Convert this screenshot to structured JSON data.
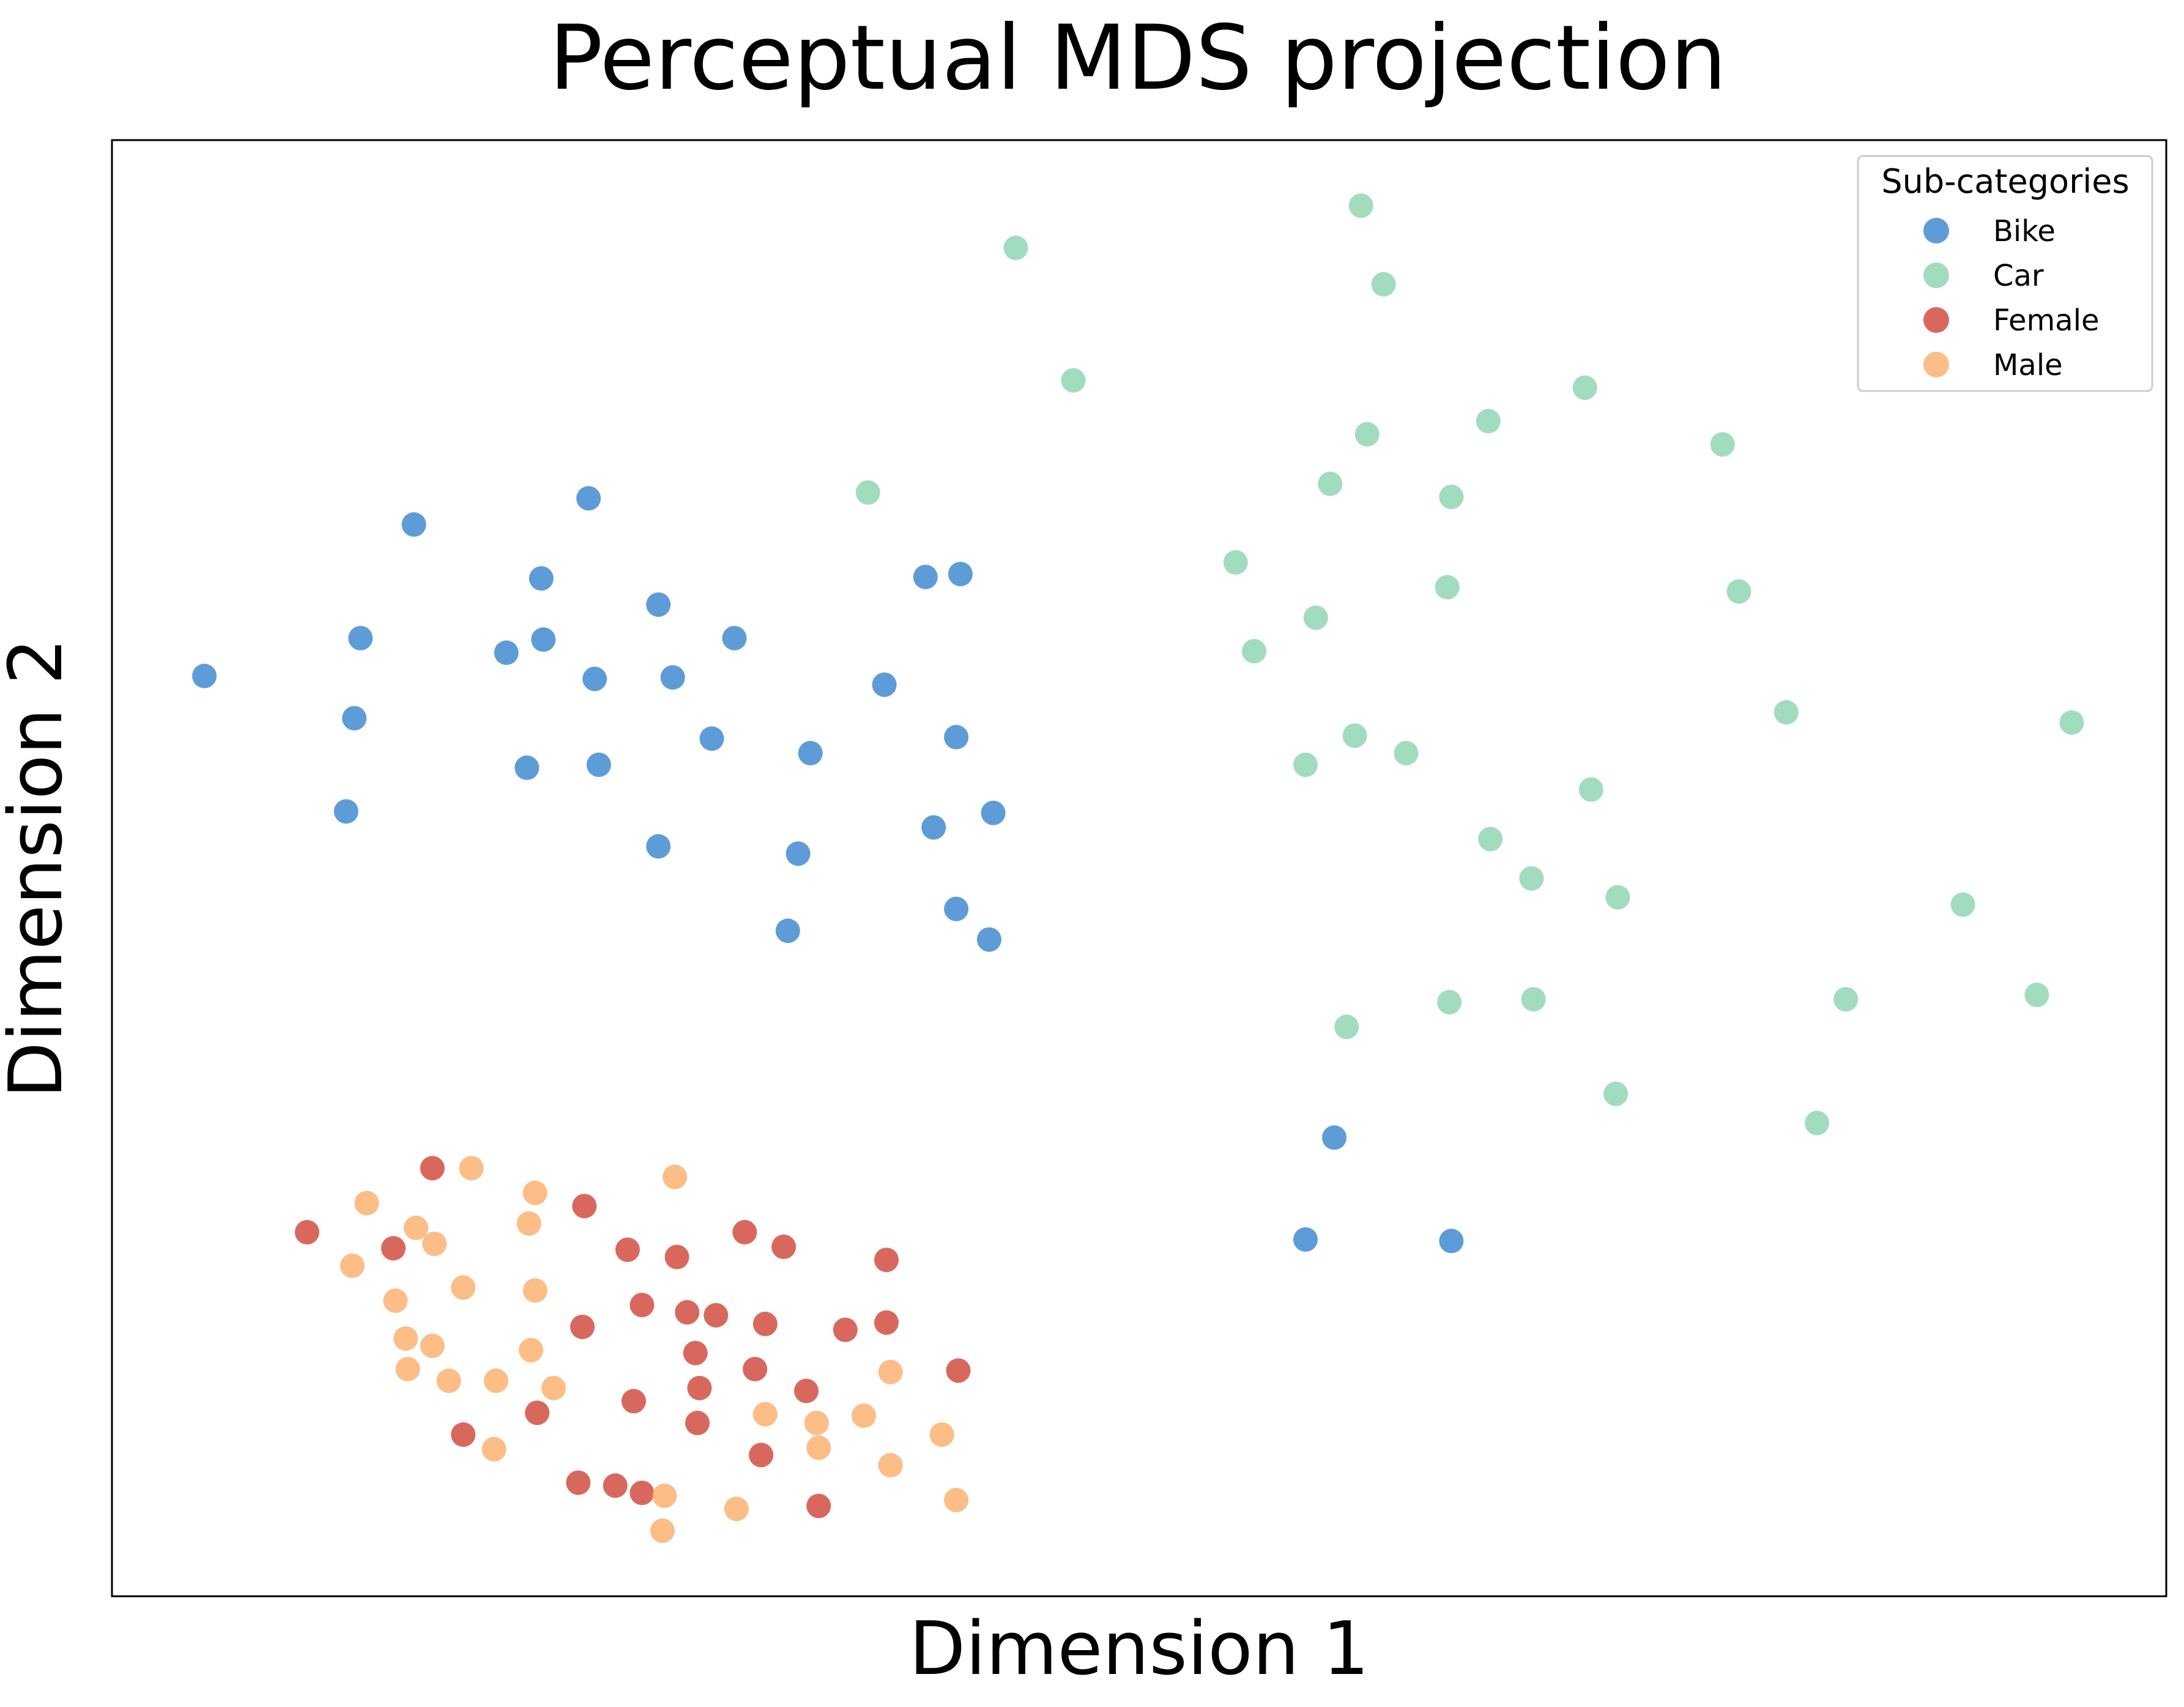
{
  "chart_data": {
    "type": "scatter",
    "title": "Perceptual MDS projection",
    "xlabel": "Dimension 1",
    "ylabel": "Dimension 2",
    "xlim": [
      0,
      100
    ],
    "ylim": [
      0,
      100
    ],
    "x_ticks": "none",
    "y_ticks": "none",
    "grid": false,
    "legend": {
      "title": "Sub-categories",
      "position": "top-right"
    },
    "series": [
      {
        "name": "Bike",
        "color": "#3a86cf",
        "points": [
          [
            4.5,
            63.2
          ],
          [
            14.7,
            73.6
          ],
          [
            12.1,
            65.8
          ],
          [
            11.8,
            60.3
          ],
          [
            11.4,
            53.9
          ],
          [
            23.2,
            75.4
          ],
          [
            20.9,
            69.9
          ],
          [
            19.2,
            64.8
          ],
          [
            21.0,
            65.7
          ],
          [
            26.6,
            68.1
          ],
          [
            20.2,
            56.9
          ],
          [
            23.5,
            63.0
          ],
          [
            27.3,
            63.1
          ],
          [
            30.3,
            65.8
          ],
          [
            29.2,
            58.9
          ],
          [
            23.7,
            57.1
          ],
          [
            34.0,
            57.9
          ],
          [
            26.6,
            51.5
          ],
          [
            33.4,
            51.0
          ],
          [
            39.6,
            70.0
          ],
          [
            41.3,
            70.2
          ],
          [
            37.6,
            62.6
          ],
          [
            41.1,
            59.0
          ],
          [
            42.9,
            53.8
          ],
          [
            40.0,
            52.8
          ],
          [
            32.9,
            45.7
          ],
          [
            41.1,
            47.2
          ],
          [
            42.7,
            45.1
          ],
          [
            59.5,
            31.5
          ],
          [
            58.1,
            24.5
          ],
          [
            65.2,
            24.4
          ]
        ]
      },
      {
        "name": "Car",
        "color": "#8ed4b0",
        "points": [
          [
            44.0,
            92.6
          ],
          [
            60.8,
            95.5
          ],
          [
            61.9,
            90.1
          ],
          [
            46.8,
            83.5
          ],
          [
            36.8,
            75.8
          ],
          [
            67.0,
            80.7
          ],
          [
            59.3,
            76.4
          ],
          [
            65.2,
            75.5
          ],
          [
            65.0,
            69.3
          ],
          [
            71.7,
            83.0
          ],
          [
            61.1,
            79.8
          ],
          [
            78.4,
            79.1
          ],
          [
            79.2,
            69.0
          ],
          [
            54.7,
            71.0
          ],
          [
            58.6,
            67.2
          ],
          [
            55.6,
            64.9
          ],
          [
            60.5,
            59.1
          ],
          [
            63.0,
            57.9
          ],
          [
            58.1,
            57.1
          ],
          [
            72.0,
            55.4
          ],
          [
            81.5,
            60.7
          ],
          [
            95.4,
            60.0
          ],
          [
            67.1,
            52.0
          ],
          [
            69.1,
            49.3
          ],
          [
            73.3,
            48.0
          ],
          [
            90.1,
            47.5
          ],
          [
            65.1,
            40.8
          ],
          [
            60.1,
            39.1
          ],
          [
            69.2,
            41.0
          ],
          [
            84.4,
            41.0
          ],
          [
            93.7,
            41.3
          ],
          [
            73.2,
            34.5
          ],
          [
            83.0,
            32.5
          ]
        ]
      },
      {
        "name": "Female",
        "color": "#d0473a",
        "points": [
          [
            15.6,
            29.4
          ],
          [
            9.5,
            25.0
          ],
          [
            13.7,
            23.9
          ],
          [
            23.0,
            26.8
          ],
          [
            25.1,
            23.8
          ],
          [
            27.5,
            23.3
          ],
          [
            30.8,
            25.0
          ],
          [
            32.7,
            24.0
          ],
          [
            37.7,
            23.1
          ],
          [
            22.9,
            18.5
          ],
          [
            25.8,
            20.0
          ],
          [
            28.0,
            19.5
          ],
          [
            28.4,
            16.7
          ],
          [
            29.4,
            19.3
          ],
          [
            31.8,
            18.7
          ],
          [
            35.7,
            18.3
          ],
          [
            37.7,
            18.8
          ],
          [
            17.1,
            11.1
          ],
          [
            20.7,
            12.6
          ],
          [
            25.4,
            13.4
          ],
          [
            28.6,
            14.3
          ],
          [
            28.5,
            11.9
          ],
          [
            31.3,
            15.6
          ],
          [
            33.8,
            14.1
          ],
          [
            41.2,
            15.5
          ],
          [
            31.6,
            9.7
          ],
          [
            22.7,
            7.8
          ],
          [
            24.5,
            7.6
          ],
          [
            25.8,
            7.1
          ],
          [
            34.4,
            6.2
          ]
        ]
      },
      {
        "name": "Male",
        "color": "#fbae6c",
        "points": [
          [
            17.5,
            29.4
          ],
          [
            12.4,
            27.0
          ],
          [
            14.8,
            25.3
          ],
          [
            20.6,
            27.7
          ],
          [
            27.4,
            28.8
          ],
          [
            11.7,
            22.7
          ],
          [
            15.7,
            24.2
          ],
          [
            17.1,
            21.2
          ],
          [
            20.3,
            25.6
          ],
          [
            20.6,
            21.0
          ],
          [
            13.8,
            20.3
          ],
          [
            14.3,
            17.7
          ],
          [
            15.6,
            17.2
          ],
          [
            20.4,
            16.9
          ],
          [
            14.4,
            15.6
          ],
          [
            16.4,
            14.8
          ],
          [
            18.7,
            14.8
          ],
          [
            21.5,
            14.3
          ],
          [
            18.6,
            10.1
          ],
          [
            31.8,
            12.5
          ],
          [
            34.3,
            11.9
          ],
          [
            36.6,
            12.4
          ],
          [
            34.4,
            10.2
          ],
          [
            37.9,
            15.4
          ],
          [
            40.4,
            11.1
          ],
          [
            37.9,
            9.0
          ],
          [
            26.9,
            6.9
          ],
          [
            30.4,
            6.0
          ],
          [
            41.1,
            6.6
          ],
          [
            26.8,
            4.5
          ]
        ]
      }
    ]
  }
}
